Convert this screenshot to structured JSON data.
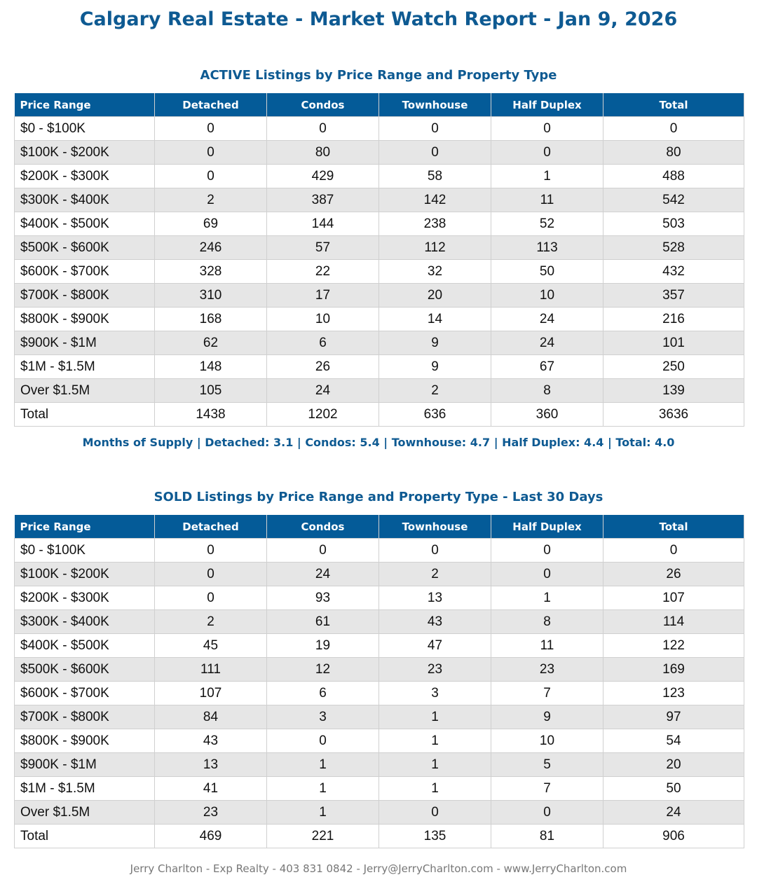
{
  "title": "Calgary Real Estate - Market Watch Report - Jan 9, 2026",
  "active": {
    "heading": "ACTIVE Listings by Price Range and Property Type",
    "columns": [
      "Price Range",
      "Detached",
      "Condos",
      "Townhouse",
      "Half Duplex",
      "Total"
    ],
    "rows": [
      [
        "$0 - $100K",
        "0",
        "0",
        "0",
        "0",
        "0"
      ],
      [
        "$100K - $200K",
        "0",
        "80",
        "0",
        "0",
        "80"
      ],
      [
        "$200K - $300K",
        "0",
        "429",
        "58",
        "1",
        "488"
      ],
      [
        "$300K - $400K",
        "2",
        "387",
        "142",
        "11",
        "542"
      ],
      [
        "$400K - $500K",
        "69",
        "144",
        "238",
        "52",
        "503"
      ],
      [
        "$500K - $600K",
        "246",
        "57",
        "112",
        "113",
        "528"
      ],
      [
        "$600K - $700K",
        "328",
        "22",
        "32",
        "50",
        "432"
      ],
      [
        "$700K - $800K",
        "310",
        "17",
        "20",
        "10",
        "357"
      ],
      [
        "$800K - $900K",
        "168",
        "10",
        "14",
        "24",
        "216"
      ],
      [
        "$900K - $1M",
        "62",
        "6",
        "9",
        "24",
        "101"
      ],
      [
        "$1M - $1.5M",
        "148",
        "26",
        "9",
        "67",
        "250"
      ],
      [
        "Over $1.5M",
        "105",
        "24",
        "2",
        "8",
        "139"
      ],
      [
        "Total",
        "1438",
        "1202",
        "636",
        "360",
        "3636"
      ]
    ]
  },
  "months_of_supply": "Months of Supply | Detached: 3.1 | Condos: 5.4 | Townhouse: 4.7 | Half Duplex: 4.4 | Total: 4.0",
  "sold": {
    "heading": "SOLD Listings by Price Range and Property Type - Last 30 Days",
    "columns": [
      "Price Range",
      "Detached",
      "Condos",
      "Townhouse",
      "Half Duplex",
      "Total"
    ],
    "rows": [
      [
        "$0 - $100K",
        "0",
        "0",
        "0",
        "0",
        "0"
      ],
      [
        "$100K - $200K",
        "0",
        "24",
        "2",
        "0",
        "26"
      ],
      [
        "$200K - $300K",
        "0",
        "93",
        "13",
        "1",
        "107"
      ],
      [
        "$300K - $400K",
        "2",
        "61",
        "43",
        "8",
        "114"
      ],
      [
        "$400K - $500K",
        "45",
        "19",
        "47",
        "11",
        "122"
      ],
      [
        "$500K - $600K",
        "111",
        "12",
        "23",
        "23",
        "169"
      ],
      [
        "$600K - $700K",
        "107",
        "6",
        "3",
        "7",
        "123"
      ],
      [
        "$700K - $800K",
        "84",
        "3",
        "1",
        "9",
        "97"
      ],
      [
        "$800K - $900K",
        "43",
        "0",
        "1",
        "10",
        "54"
      ],
      [
        "$900K - $1M",
        "13",
        "1",
        "1",
        "5",
        "20"
      ],
      [
        "$1M - $1.5M",
        "41",
        "1",
        "1",
        "7",
        "50"
      ],
      [
        "Over $1.5M",
        "23",
        "1",
        "0",
        "0",
        "24"
      ],
      [
        "Total",
        "469",
        "221",
        "135",
        "81",
        "906"
      ]
    ]
  },
  "footer": "Jerry Charlton - Exp Realty - 403 831 0842 - Jerry@JerryCharlton.com - www.JerryCharlton.com"
}
